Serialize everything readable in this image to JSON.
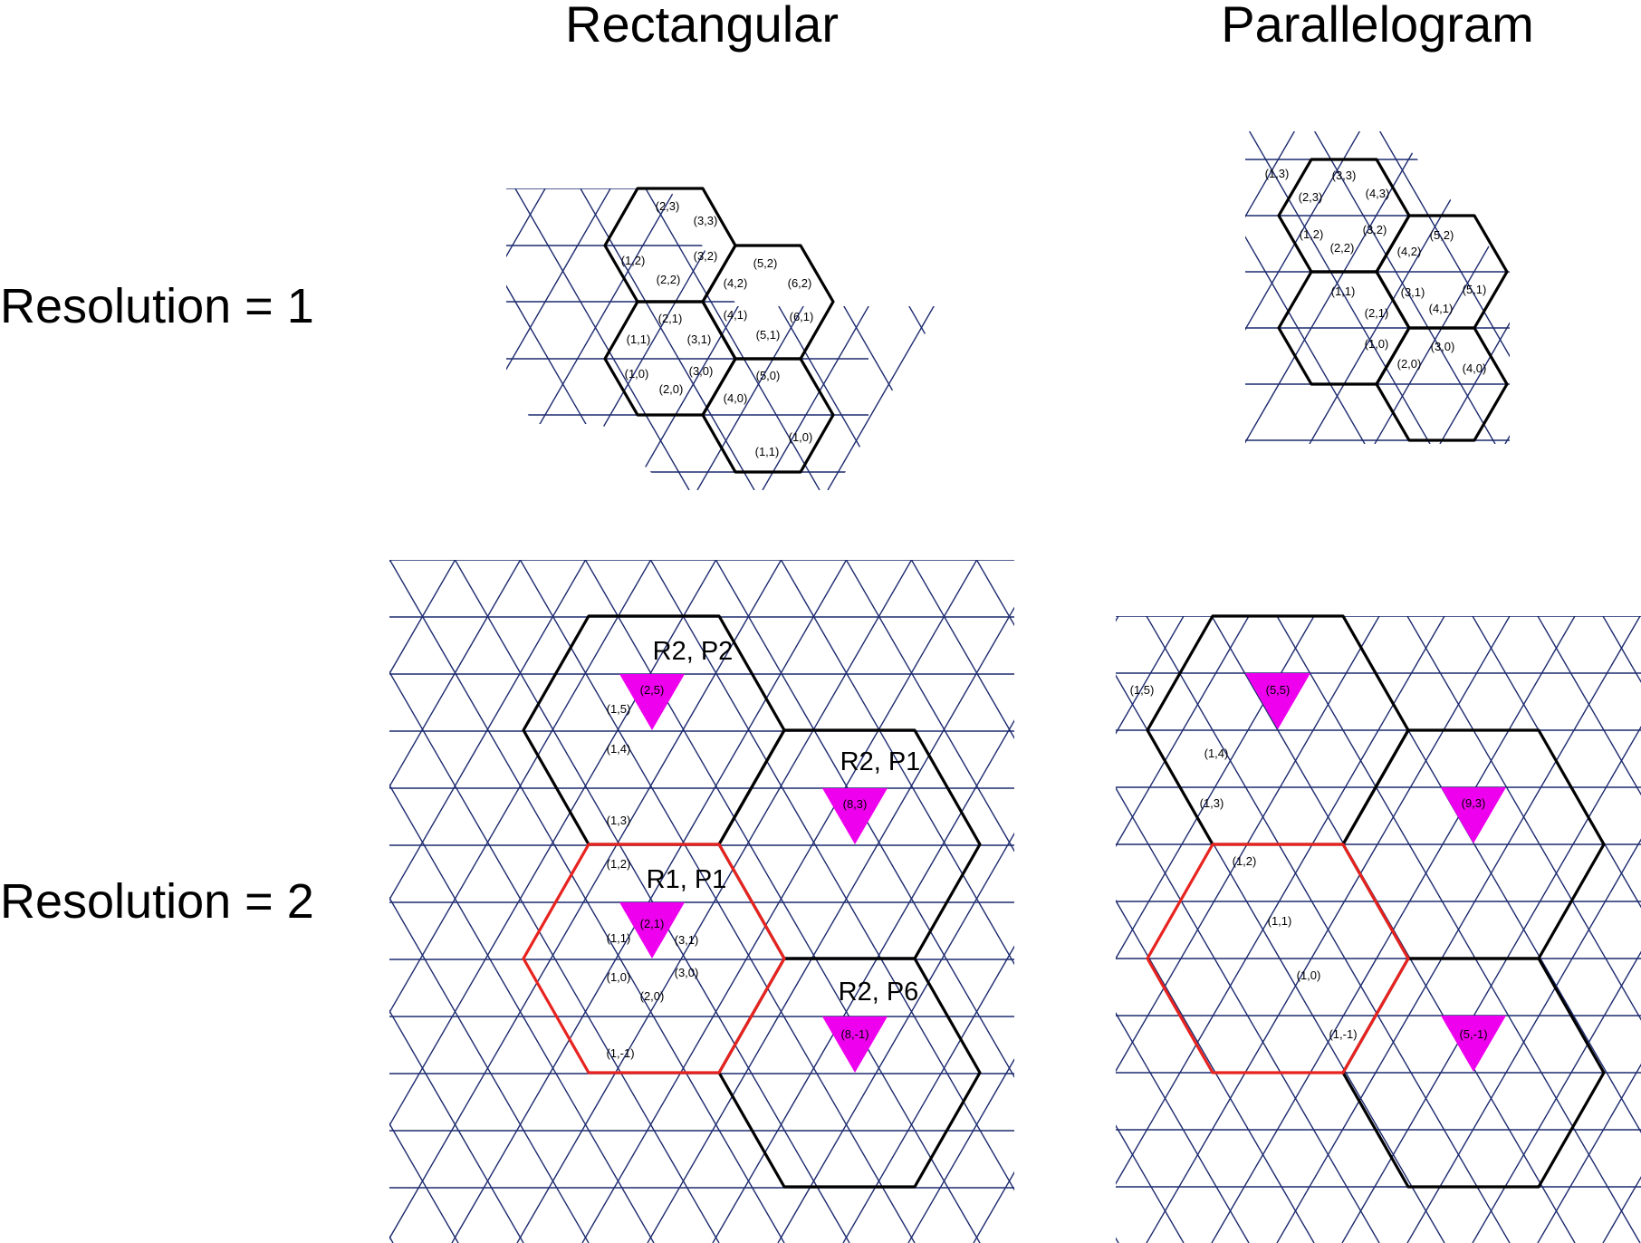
{
  "headings": {
    "rectangular": "Rectangular",
    "parallelogram": "Parallelogram"
  },
  "row_labels": {
    "resolution_1": "Resolution = 1",
    "resolution_2": "Resolution = 2"
  },
  "colors": {
    "grid": "#1c2a6e",
    "hexagon": "#000000",
    "red_hexagon": "#e8231f",
    "highlight": "#ee00ee"
  },
  "panels": {
    "rect_res1": {
      "coordinate_labels": [
        "(2,3)",
        "(3,3)",
        "(1,2)",
        "(2,2)",
        "(3,2)",
        "(4,2)",
        "(5,2)",
        "(6,2)",
        "(1,1)",
        "(2,1)",
        "(3,1)",
        "(4,1)",
        "(5,1)",
        "(6,1)",
        "(1,0)",
        "(2,0)",
        "(3,0)",
        "(4,0)",
        "(5,0)",
        "(1,1)",
        "(1,0)"
      ]
    },
    "para_res1": {
      "coordinate_labels": [
        "(1,3)",
        "(2,3)",
        "(3,3)",
        "(4,3)",
        "(1,2)",
        "(2,2)",
        "(3,2)",
        "(4,2)",
        "(5,2)",
        "(1,1)",
        "(2,1)",
        "(3,1)",
        "(4,1)",
        "(5,1)",
        "(1,0)",
        "(2,0)",
        "(3,0)",
        "(4,0)"
      ]
    },
    "rect_res2": {
      "region_labels": [
        "R2, P2",
        "R2, P1",
        "R1, P1",
        "R2, P6"
      ],
      "highlight_labels": [
        "(2,5)",
        "(8,3)",
        "(2,1)",
        "(8,-1)"
      ],
      "coordinate_labels": [
        "(1,5)",
        "(1,4)",
        "(1,3)",
        "(1,2)",
        "(1,1)",
        "(3,1)",
        "(1,0)",
        "(3,0)",
        "(2,0)",
        "(1,-1)"
      ]
    },
    "para_res2": {
      "highlight_labels": [
        "(5,5)",
        "(9,3)",
        "(5,-1)"
      ],
      "coordinate_labels": [
        "(1,5)",
        "(1,4)",
        "(1,3)",
        "(1,2)",
        "(1,1)",
        "(1,0)",
        "(1,-1)"
      ]
    }
  }
}
